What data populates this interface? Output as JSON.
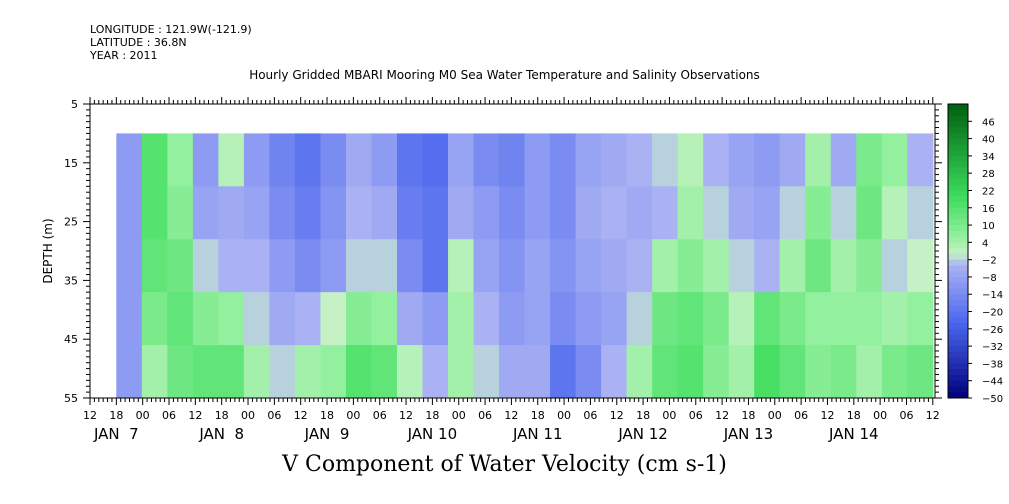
{
  "header": {
    "longitude": "LONGITUDE : 121.9W(-121.9)",
    "latitude": "LATITUDE : 36.8N",
    "year": "YEAR : 2011"
  },
  "chart_data": {
    "type": "heatmap",
    "title": "Hourly Gridded MBARI Mooring M0 Sea Water Temperature and Salinity Observations",
    "xlabel": "V Component of Water Velocity (cm s-1)",
    "ylabel": "DEPTH (m)",
    "ylim": [
      5,
      55
    ],
    "y_inverted": true,
    "y_ticks": [
      5,
      15,
      25,
      35,
      45,
      55
    ],
    "x_hour_ticks": [
      "12",
      "18",
      "00",
      "06",
      "12",
      "18",
      "00",
      "06",
      "12",
      "18",
      "00",
      "06",
      "12",
      "18",
      "00",
      "06",
      "12",
      "18",
      "00",
      "06",
      "12",
      "18",
      "00",
      "06",
      "12",
      "18",
      "00",
      "06",
      "12",
      "18",
      "00",
      "06",
      "12"
    ],
    "x_day_labels": [
      "JAN  7",
      "JAN  8",
      "JAN  9",
      "JAN 10",
      "JAN 11",
      "JAN 12",
      "JAN 13",
      "JAN 14"
    ],
    "colorbar_labels": [
      46,
      40,
      34,
      28,
      22,
      16,
      10,
      4,
      -2,
      -8,
      -14,
      -20,
      -26,
      -32,
      -38,
      -44,
      -50
    ],
    "colorbar_range": [
      -50,
      52
    ],
    "data_depth_range": [
      10,
      55
    ],
    "data_start": "JAN 6 18:00",
    "data_end": "JAN 14 12:00",
    "colors": {
      "strong_negative": "#00007a",
      "moderate_negative": "#4a66ee",
      "weak_negative": "#aab2f4",
      "near_zero": "#c6f1c6",
      "weak_positive": "#92f09e",
      "moderate_positive": "#3ddc5c",
      "strong_positive": "#005f10"
    },
    "columns": [
      {
        "time": "Jan 6 18:00",
        "values": [
          -10,
          -10,
          -10,
          -10,
          -10
        ]
      },
      {
        "time": "Jan 7 00:00",
        "values": [
          16,
          16,
          14,
          10,
          4
        ]
      },
      {
        "time": "Jan 7 06:00",
        "values": [
          6,
          8,
          12,
          14,
          12
        ]
      },
      {
        "time": "Jan 7 12:00",
        "values": [
          -10,
          -8,
          -2,
          8,
          14
        ]
      },
      {
        "time": "Jan 7 18:00",
        "values": [
          2,
          -6,
          -4,
          6,
          14
        ]
      },
      {
        "time": "Jan 8 00:00",
        "values": [
          -10,
          -8,
          -4,
          -2,
          4
        ]
      },
      {
        "time": "Jan 8 06:00",
        "values": [
          -16,
          -14,
          -10,
          -6,
          -2
        ]
      },
      {
        "time": "Jan 8 12:00",
        "values": [
          -20,
          -18,
          -14,
          -4,
          4
        ]
      },
      {
        "time": "Jan 8 18:00",
        "values": [
          -14,
          -12,
          -10,
          0,
          6
        ]
      },
      {
        "time": "Jan 9 00:00",
        "values": [
          -6,
          -4,
          -2,
          8,
          16
        ]
      },
      {
        "time": "Jan 9 06:00",
        "values": [
          -10,
          -6,
          -2,
          6,
          14
        ]
      },
      {
        "time": "Jan 9 12:00",
        "values": [
          -20,
          -18,
          -14,
          -6,
          2
        ]
      },
      {
        "time": "Jan 9 18:00",
        "values": [
          -22,
          -20,
          -20,
          -10,
          -4
        ]
      },
      {
        "time": "Jan 10 00:00",
        "values": [
          -8,
          -6,
          2,
          4,
          4
        ]
      },
      {
        "time": "Jan 10 06:00",
        "values": [
          -14,
          -10,
          -8,
          -4,
          -2
        ]
      },
      {
        "time": "Jan 10 12:00",
        "values": [
          -16,
          -14,
          -12,
          -10,
          -6
        ]
      },
      {
        "time": "Jan 10 18:00",
        "values": [
          -10,
          -10,
          -8,
          -8,
          -6
        ]
      },
      {
        "time": "Jan 11 00:00",
        "values": [
          -14,
          -14,
          -12,
          -14,
          -20
        ]
      },
      {
        "time": "Jan 11 06:00",
        "values": [
          -8,
          -6,
          -8,
          -10,
          -14
        ]
      },
      {
        "time": "Jan 11 12:00",
        "values": [
          -6,
          -4,
          -6,
          -8,
          -4
        ]
      },
      {
        "time": "Jan 11 18:00",
        "values": [
          -4,
          -6,
          -4,
          -2,
          4
        ]
      },
      {
        "time": "Jan 12 00:00",
        "values": [
          -2,
          -4,
          4,
          12,
          14
        ]
      },
      {
        "time": "Jan 12 06:00",
        "values": [
          2,
          4,
          8,
          14,
          16
        ]
      },
      {
        "time": "Jan 12 12:00",
        "values": [
          -4,
          -2,
          4,
          10,
          8
        ]
      },
      {
        "time": "Jan 12 18:00",
        "values": [
          -8,
          -6,
          -2,
          2,
          4
        ]
      },
      {
        "time": "Jan 13 00:00",
        "values": [
          -10,
          -8,
          -4,
          14,
          18
        ]
      },
      {
        "time": "Jan 13 06:00",
        "values": [
          -6,
          -2,
          4,
          10,
          14
        ]
      },
      {
        "time": "Jan 13 12:00",
        "values": [
          4,
          8,
          12,
          6,
          8
        ]
      },
      {
        "time": "Jan 13 18:00",
        "values": [
          -6,
          -2,
          4,
          6,
          10
        ]
      },
      {
        "time": "Jan 14 00:00",
        "values": [
          10,
          12,
          8,
          6,
          4
        ]
      },
      {
        "time": "Jan 14 06:00",
        "values": [
          6,
          2,
          -2,
          4,
          10
        ]
      },
      {
        "time": "Jan 14 12:00",
        "values": [
          -4,
          -2,
          0,
          6,
          12
        ]
      }
    ]
  }
}
